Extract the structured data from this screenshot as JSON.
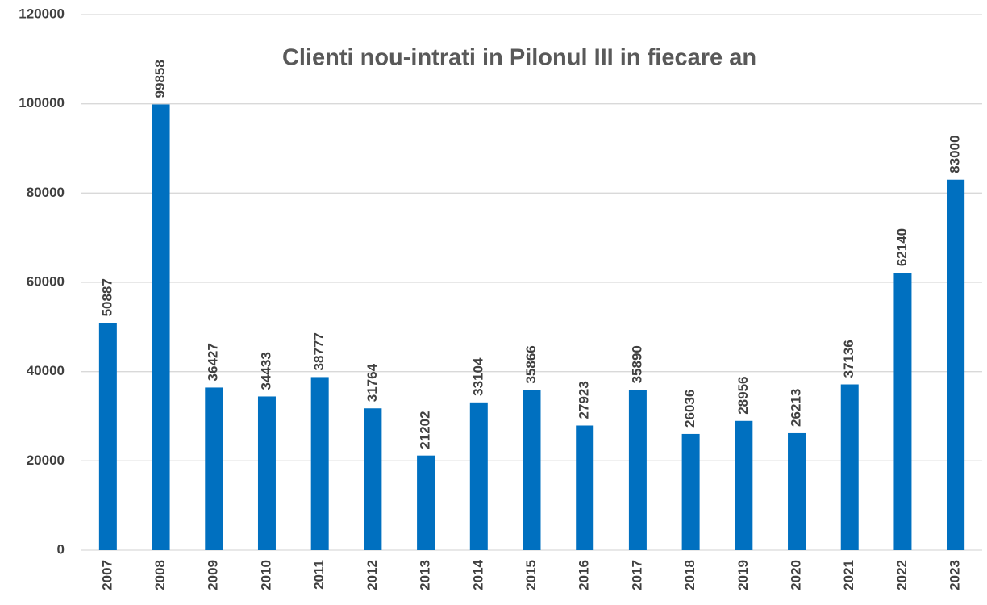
{
  "chart_data": {
    "type": "bar",
    "title": "Clienti nou-intrati in Pilonul III in fiecare an",
    "categories": [
      "2007",
      "2008",
      "2009",
      "2010",
      "2011",
      "2012",
      "2013",
      "2014",
      "2015",
      "2016",
      "2017",
      "2018",
      "2019",
      "2020",
      "2021",
      "2022",
      "2023"
    ],
    "values": [
      50887,
      99858,
      36427,
      34433,
      38777,
      31764,
      21202,
      33104,
      35866,
      27923,
      35890,
      26036,
      28956,
      26213,
      37136,
      62140,
      83000
    ],
    "color": "#0070c0",
    "ylim": [
      0,
      120000
    ],
    "yticks": [
      0,
      20000,
      40000,
      60000,
      80000,
      100000,
      120000
    ],
    "grid": true
  }
}
